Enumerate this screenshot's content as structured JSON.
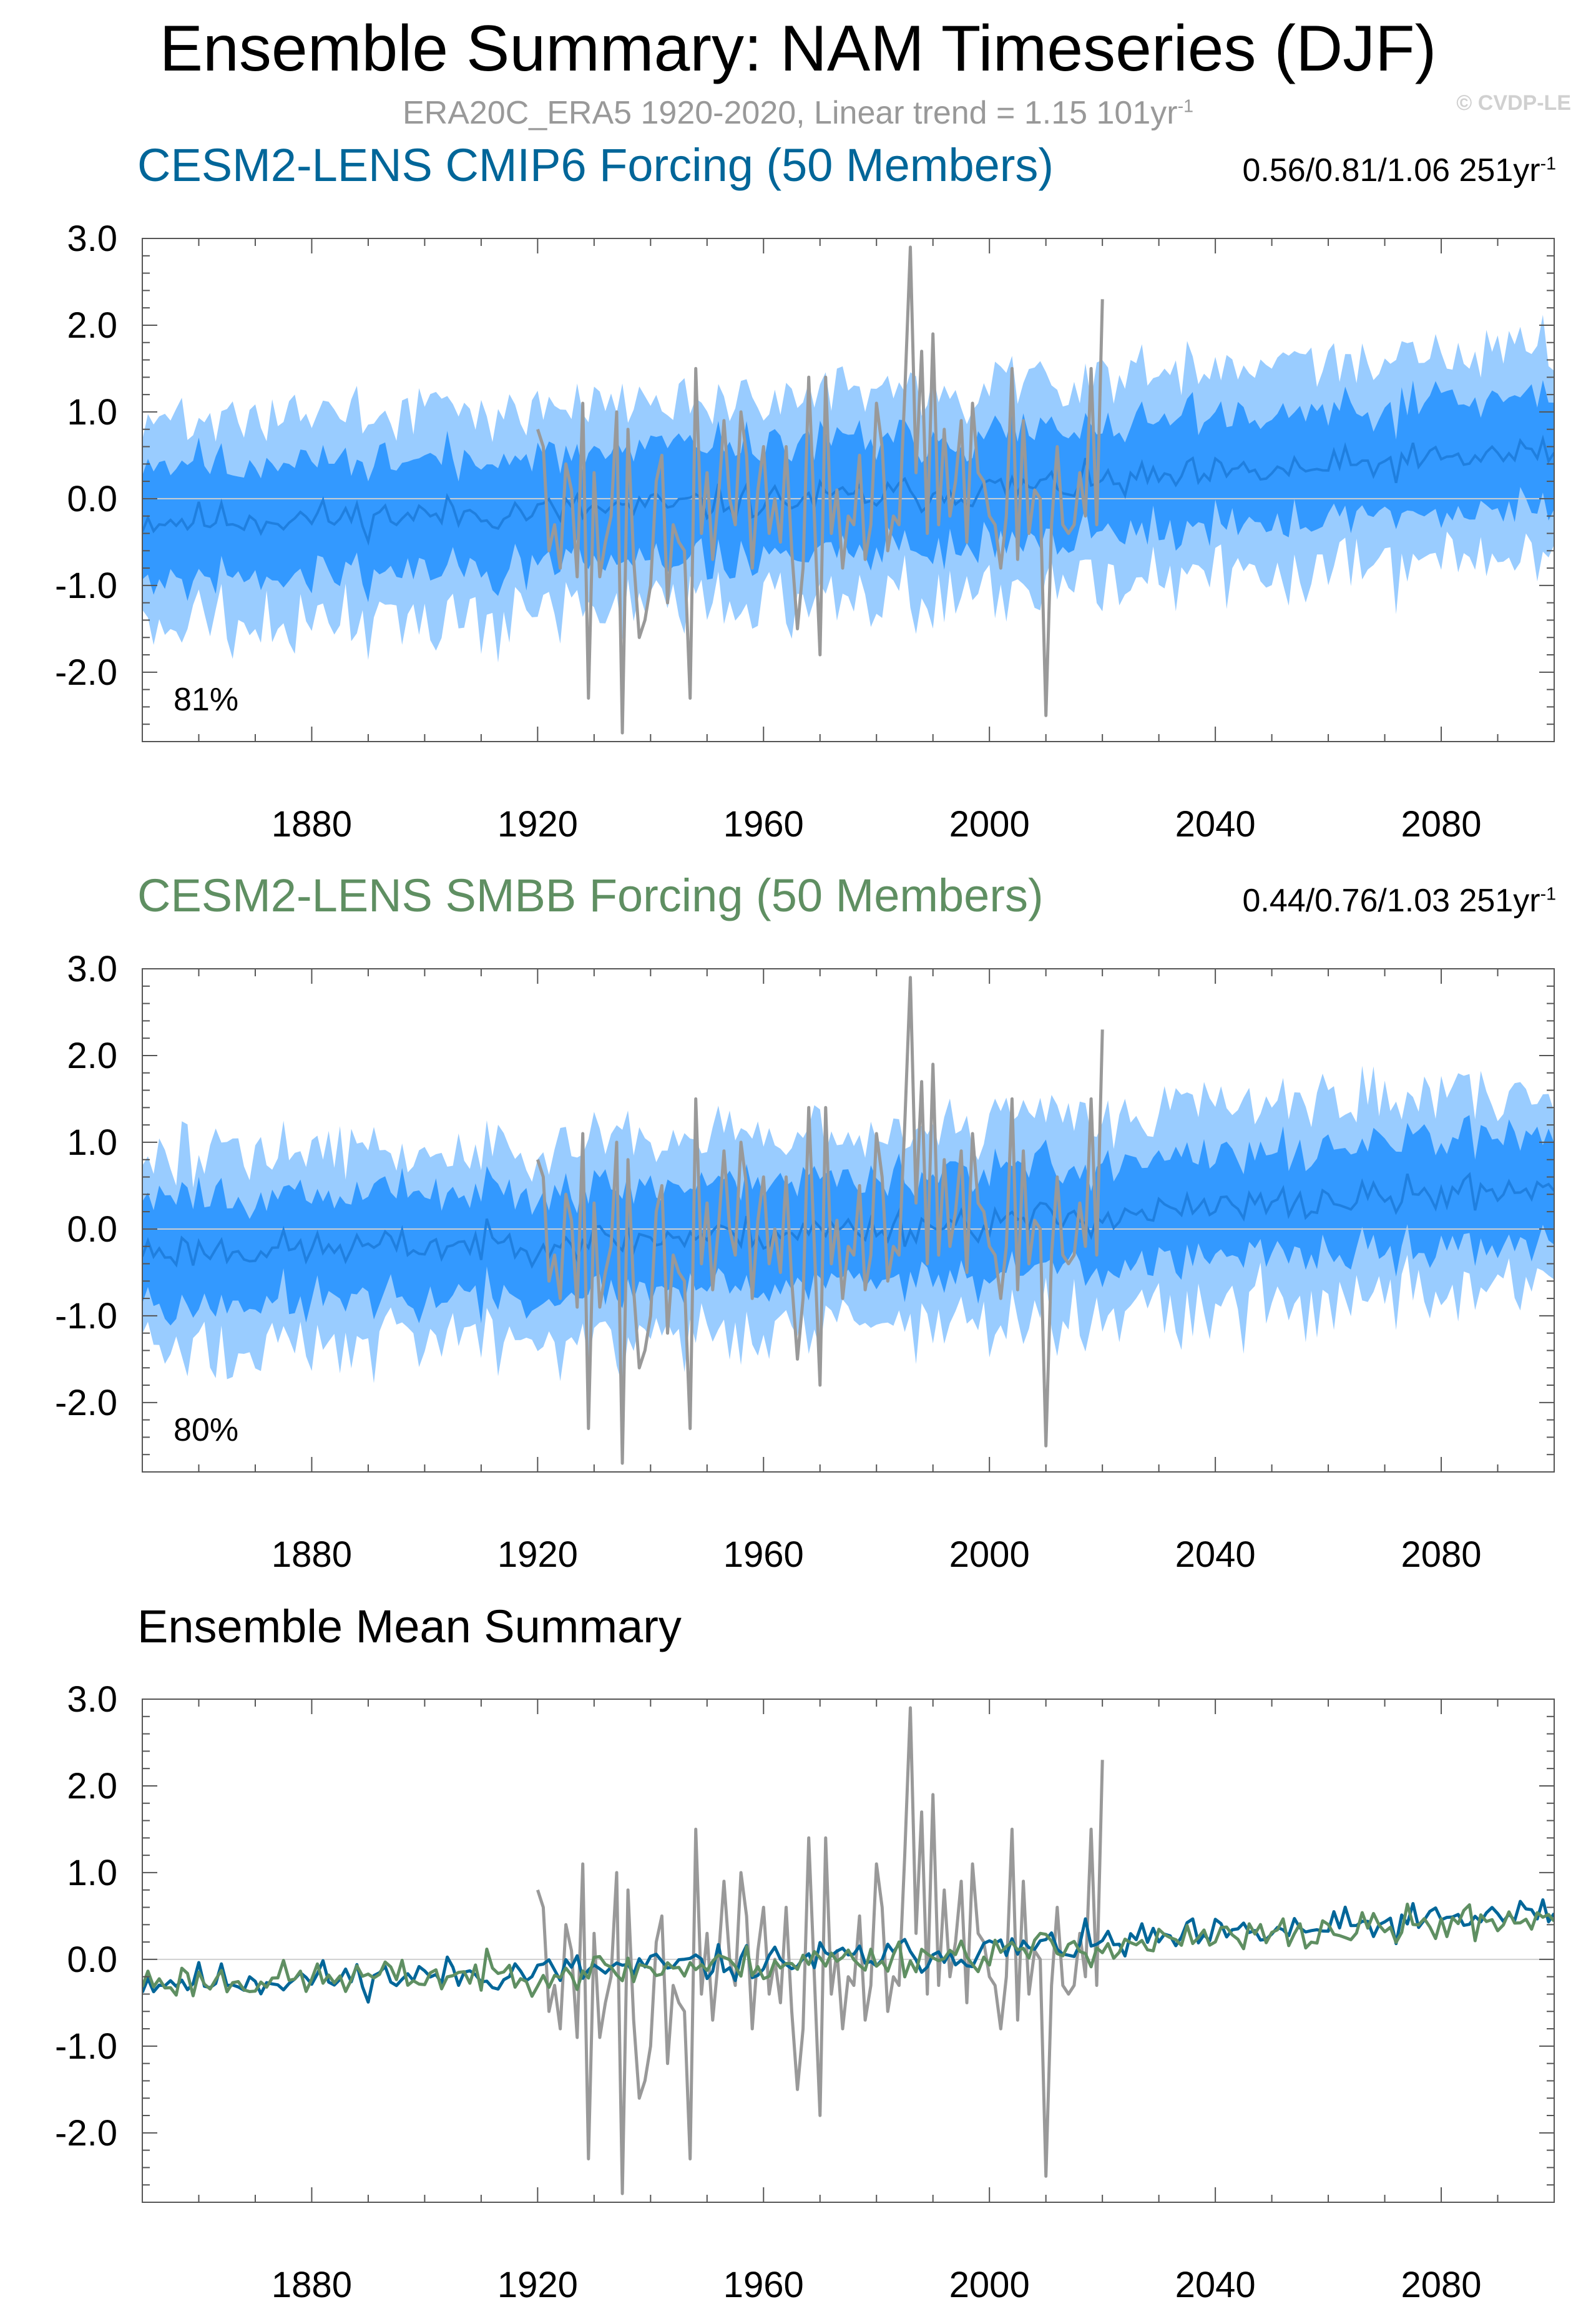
{
  "header": {
    "title": "Ensemble Summary: NAM Timeseries (DJF)",
    "subtitle_main": "ERA20C_ERA5 1920-2020, Linear trend = 1.15 101yr",
    "subtitle_sup": "-1",
    "watermark": "© CVDP-LE"
  },
  "colors": {
    "cmip6": "#006699",
    "smbb": "#5f8f62",
    "obs": "#999999",
    "band_outer": "#99ccff",
    "band_inner": "#3399ff",
    "mean_line": "#1f7fdf",
    "axis": "#000000",
    "zero_line": "#d0d0d0"
  },
  "panels": [
    {
      "title": "CESM2-LENS CMIP6 Forcing (50 Members)",
      "title_color": "#006699",
      "trend_main": "0.56/0.81/1.06 251yr",
      "trend_sup": "-1",
      "percent": "81%"
    },
    {
      "title": "CESM2-LENS SMBB Forcing (50 Members)",
      "title_color": "#5f8f62",
      "trend_main": "0.44/0.76/1.03 251yr",
      "trend_sup": "-1",
      "percent": "80%"
    },
    {
      "title": "Ensemble Mean Summary",
      "title_color": "#000000",
      "trend_main": "",
      "trend_sup": "",
      "percent": ""
    }
  ],
  "chart_data": [
    {
      "type": "line",
      "title": "CESM2-LENS CMIP6 Forcing (50 Members)",
      "x_range": [
        1850,
        2100
      ],
      "ylim": [
        -2.8,
        3.0
      ],
      "x_ticks": [
        1880,
        1920,
        1960,
        2000,
        2040,
        2080
      ],
      "x_tick_labels": [
        "1880",
        "1920",
        "1960",
        "2000",
        "2040",
        "2080"
      ],
      "y_ticks": [
        -2,
        -1,
        0,
        1,
        2,
        3
      ],
      "y_tick_labels": [
        "-2.0",
        "-1.0",
        "0.0",
        "1.0",
        "2.0",
        "3.0"
      ],
      "ensemble_mean": {
        "start_year": 1850,
        "start": -0.25,
        "end": 0.55,
        "seed": 11,
        "amp": 0.13
      },
      "inner_band_halfwidth": 0.62,
      "outer_band_halfwidth": 1.15,
      "series": [
        {
          "name": "ERA20C_ERA5",
          "start_year": 1920,
          "values": [
            0.8,
            0.6,
            -0.6,
            -0.3,
            -0.8,
            0.4,
            0.1,
            -0.9,
            1.1,
            -2.3,
            0.3,
            -0.9,
            -0.5,
            -0.2,
            1.0,
            -2.7,
            0.8,
            -0.7,
            -1.6,
            -1.4,
            -1.0,
            0.2,
            0.5,
            -1.2,
            -0.3,
            -0.5,
            -0.6,
            -2.3,
            1.5,
            -0.4,
            0.3,
            -0.7,
            0.0,
            0.9,
            0.0,
            -0.3,
            1.0,
            0.5,
            -0.8,
            0.1,
            0.6,
            -0.4,
            0.0,
            -0.5,
            0.6,
            -0.6,
            -1.5,
            -0.8,
            1.4,
            -0.2,
            -1.8,
            1.4,
            -0.4,
            0.1,
            -0.8,
            -0.2,
            -0.3,
            0.5,
            -0.7,
            -0.3,
            1.1,
            0.6,
            -0.6,
            -0.2,
            -0.3,
            1.2,
            2.9,
            0.3,
            1.7,
            -0.4,
            1.9,
            -0.3,
            0.8,
            -0.2,
            0.2,
            0.9,
            -0.5,
            1.1,
            0.3,
            0.2,
            -0.2,
            -0.3,
            -0.8,
            -0.2,
            1.5,
            -0.7,
            0.9,
            -0.4,
            0.1,
            0.0,
            -2.5,
            -0.3,
            0.6,
            -0.3,
            -0.4,
            -0.3,
            0.3,
            -0.2,
            1.5,
            -0.3,
            2.3
          ]
        }
      ]
    },
    {
      "type": "line",
      "title": "CESM2-LENS SMBB Forcing (50 Members)",
      "x_range": [
        1850,
        2100
      ],
      "ylim": [
        -2.8,
        3.0
      ],
      "x_ticks": [
        1880,
        1920,
        1960,
        2000,
        2040,
        2080
      ],
      "x_tick_labels": [
        "1880",
        "1920",
        "1960",
        "2000",
        "2040",
        "2080"
      ],
      "y_ticks": [
        -2,
        -1,
        0,
        1,
        2,
        3
      ],
      "y_tick_labels": [
        "-2.0",
        "-1.0",
        "0.0",
        "1.0",
        "2.0",
        "3.0"
      ],
      "ensemble_mean": {
        "start_year": 1850,
        "start": -0.25,
        "end": 0.5,
        "seed": 23,
        "amp": 0.13
      },
      "inner_band_halfwidth": 0.6,
      "outer_band_halfwidth": 1.12,
      "series": [
        {
          "name": "ERA20C_ERA5",
          "start_year": 1920,
          "values": [
            0.8,
            0.6,
            -0.6,
            -0.3,
            -0.8,
            0.4,
            0.1,
            -0.9,
            1.1,
            -2.3,
            0.3,
            -0.9,
            -0.5,
            -0.2,
            1.0,
            -2.7,
            0.8,
            -0.7,
            -1.6,
            -1.4,
            -1.0,
            0.2,
            0.5,
            -1.2,
            -0.3,
            -0.5,
            -0.6,
            -2.3,
            1.5,
            -0.4,
            0.3,
            -0.7,
            0.0,
            0.9,
            0.0,
            -0.3,
            1.0,
            0.5,
            -0.8,
            0.1,
            0.6,
            -0.4,
            0.0,
            -0.5,
            0.6,
            -0.6,
            -1.5,
            -0.8,
            1.4,
            -0.2,
            -1.8,
            1.4,
            -0.4,
            0.1,
            -0.8,
            -0.2,
            -0.3,
            0.5,
            -0.7,
            -0.3,
            1.1,
            0.6,
            -0.6,
            -0.2,
            -0.3,
            1.2,
            2.9,
            0.3,
            1.7,
            -0.4,
            1.9,
            -0.3,
            0.8,
            -0.2,
            0.2,
            0.9,
            -0.5,
            1.1,
            0.3,
            0.2,
            -0.2,
            -0.3,
            -0.8,
            -0.2,
            1.5,
            -0.7,
            0.9,
            -0.4,
            0.1,
            0.0,
            -2.5,
            -0.3,
            0.6,
            -0.3,
            -0.4,
            -0.3,
            0.3,
            -0.2,
            1.5,
            -0.3,
            2.3
          ]
        }
      ]
    },
    {
      "type": "line",
      "title": "Ensemble Mean Summary",
      "x_range": [
        1850,
        2100
      ],
      "ylim": [
        -2.8,
        3.0
      ],
      "x_ticks": [
        1880,
        1920,
        1960,
        2000,
        2040,
        2080
      ],
      "x_tick_labels": [
        "1880",
        "1920",
        "1960",
        "2000",
        "2040",
        "2080"
      ],
      "y_ticks": [
        -2,
        -1,
        0,
        1,
        2,
        3
      ],
      "y_tick_labels": [
        "-2.0",
        "-1.0",
        "0.0",
        "1.0",
        "2.0",
        "3.0"
      ],
      "ensemble_means": [
        {
          "name": "CESM2-LENS CMIP6 Forcing",
          "color": "#006699",
          "start_year": 1850,
          "start": -0.25,
          "end": 0.55,
          "seed": 11,
          "amp": 0.13
        },
        {
          "name": "CESM2-LENS SMBB Forcing",
          "color": "#5f8f62",
          "start_year": 1850,
          "start": -0.25,
          "end": 0.5,
          "seed": 23,
          "amp": 0.13
        }
      ],
      "series": [
        {
          "name": "ERA20C_ERA5",
          "start_year": 1920,
          "values": [
            0.8,
            0.6,
            -0.6,
            -0.3,
            -0.8,
            0.4,
            0.1,
            -0.9,
            1.1,
            -2.3,
            0.3,
            -0.9,
            -0.5,
            -0.2,
            1.0,
            -2.7,
            0.8,
            -0.7,
            -1.6,
            -1.4,
            -1.0,
            0.2,
            0.5,
            -1.2,
            -0.3,
            -0.5,
            -0.6,
            -2.3,
            1.5,
            -0.4,
            0.3,
            -0.7,
            0.0,
            0.9,
            0.0,
            -0.3,
            1.0,
            0.5,
            -0.8,
            0.1,
            0.6,
            -0.4,
            0.0,
            -0.5,
            0.6,
            -0.6,
            -1.5,
            -0.8,
            1.4,
            -0.2,
            -1.8,
            1.4,
            -0.4,
            0.1,
            -0.8,
            -0.2,
            -0.3,
            0.5,
            -0.7,
            -0.3,
            1.1,
            0.6,
            -0.6,
            -0.2,
            -0.3,
            1.2,
            2.9,
            0.3,
            1.7,
            -0.4,
            1.9,
            -0.3,
            0.8,
            -0.2,
            0.2,
            0.9,
            -0.5,
            1.1,
            0.3,
            0.2,
            -0.2,
            -0.3,
            -0.8,
            -0.2,
            1.5,
            -0.7,
            0.9,
            -0.4,
            0.1,
            0.0,
            -2.5,
            -0.3,
            0.6,
            -0.3,
            -0.4,
            -0.3,
            0.3,
            -0.2,
            1.5,
            -0.3,
            2.3
          ]
        }
      ]
    }
  ]
}
